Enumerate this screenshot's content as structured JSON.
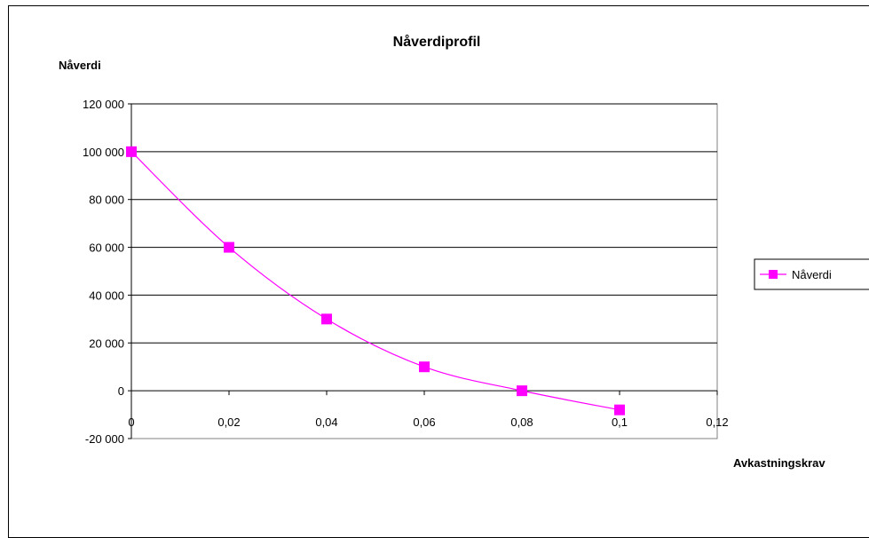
{
  "chart_data": {
    "type": "line",
    "title": "Nåverdiprofil",
    "xlabel": "Avkastningskrav",
    "ylabel": "Nåverdi",
    "x": [
      0,
      0.02,
      0.04,
      0.06,
      0.08,
      0.1
    ],
    "series": [
      {
        "name": "Nåverdi",
        "values": [
          100000,
          60000,
          30000,
          10000,
          0,
          -8000
        ],
        "color": "#ff00ff"
      }
    ],
    "xlim": [
      0,
      0.12
    ],
    "ylim": [
      -20000,
      120000
    ],
    "x_ticks": [
      0,
      0.02,
      0.04,
      0.06,
      0.08,
      0.1,
      0.12
    ],
    "y_ticks": [
      -20000,
      0,
      20000,
      40000,
      60000,
      80000,
      100000,
      120000
    ],
    "x_tick_labels": [
      "0",
      "0,02",
      "0,04",
      "0,06",
      "0,08",
      "0,1",
      "0,12"
    ],
    "y_tick_labels": [
      "-20 000",
      "0",
      "20 000",
      "40 000",
      "60 000",
      "80 000",
      "100 000",
      "120 000"
    ],
    "grid": "horizontal",
    "legend_position": "right"
  }
}
